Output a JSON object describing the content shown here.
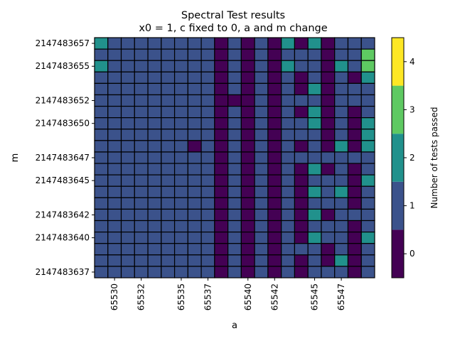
{
  "chart_data": {
    "type": "heatmap",
    "title": "Spectral Test results",
    "subtitle": "x0 = 1, c fixed to 0, a and m change",
    "xlabel": "a",
    "ylabel": "m",
    "colorbar_label": "Number of tests passed",
    "x_tick_labels": [
      "65530",
      "65532",
      "65535",
      "65537",
      "65540",
      "65542",
      "65545",
      "65547"
    ],
    "x_tick_values": [
      65530,
      65532,
      65535,
      65537,
      65540,
      65542,
      65545,
      65547
    ],
    "y_tick_labels": [
      "2147483657",
      "2147483655",
      "2147483652",
      "2147483650",
      "2147483647",
      "2147483645",
      "2147483642",
      "2147483640",
      "2147483637"
    ],
    "y_tick_values": [
      2147483657,
      2147483655,
      2147483652,
      2147483650,
      2147483647,
      2147483645,
      2147483642,
      2147483640,
      2147483637
    ],
    "x_range": [
      65529,
      65549
    ],
    "y_range": [
      2147483637,
      2147483657
    ],
    "colorbar_ticks": [
      "0",
      "1",
      "2",
      "3",
      "4"
    ],
    "colorbar_range": [
      -0.5,
      4.5
    ],
    "colors": [
      "#440154",
      "#3b528b",
      "#21918c",
      "#5ec962",
      "#fde725"
    ],
    "grid": false,
    "legend": "colorbar-right",
    "rows_top_to_bottom": [
      [
        2,
        1,
        1,
        1,
        1,
        1,
        1,
        1,
        1,
        0,
        1,
        0,
        1,
        0,
        2,
        0,
        2,
        0,
        1,
        1,
        1
      ],
      [
        1,
        1,
        1,
        1,
        1,
        1,
        1,
        1,
        1,
        0,
        1,
        0,
        1,
        0,
        1,
        1,
        1,
        0,
        1,
        1,
        3
      ],
      [
        2,
        1,
        1,
        1,
        1,
        1,
        1,
        1,
        1,
        0,
        1,
        0,
        1,
        0,
        2,
        1,
        1,
        0,
        2,
        1,
        3
      ],
      [
        1,
        1,
        1,
        1,
        1,
        1,
        1,
        1,
        1,
        0,
        1,
        0,
        1,
        0,
        1,
        0,
        1,
        0,
        1,
        0,
        2
      ],
      [
        1,
        1,
        1,
        1,
        1,
        1,
        1,
        1,
        1,
        0,
        1,
        0,
        1,
        0,
        1,
        0,
        2,
        0,
        1,
        1,
        1
      ],
      [
        1,
        1,
        1,
        1,
        1,
        1,
        1,
        1,
        1,
        0,
        0,
        0,
        1,
        0,
        1,
        1,
        1,
        0,
        1,
        1,
        1
      ],
      [
        1,
        1,
        1,
        1,
        1,
        1,
        1,
        1,
        1,
        0,
        1,
        0,
        1,
        0,
        1,
        0,
        2,
        0,
        1,
        0,
        1
      ],
      [
        1,
        1,
        1,
        1,
        1,
        1,
        1,
        1,
        1,
        0,
        1,
        0,
        1,
        0,
        1,
        1,
        2,
        0,
        1,
        0,
        2
      ],
      [
        1,
        1,
        1,
        1,
        1,
        1,
        1,
        1,
        1,
        0,
        1,
        0,
        1,
        0,
        1,
        1,
        1,
        0,
        1,
        0,
        2
      ],
      [
        1,
        1,
        1,
        1,
        1,
        1,
        1,
        0,
        1,
        0,
        1,
        0,
        1,
        0,
        1,
        0,
        1,
        0,
        2,
        0,
        2
      ],
      [
        1,
        1,
        1,
        1,
        1,
        1,
        1,
        1,
        1,
        0,
        1,
        0,
        1,
        0,
        1,
        1,
        1,
        1,
        1,
        1,
        1
      ],
      [
        1,
        1,
        1,
        1,
        1,
        1,
        1,
        1,
        1,
        0,
        1,
        0,
        1,
        0,
        1,
        0,
        2,
        0,
        1,
        0,
        1
      ],
      [
        1,
        1,
        1,
        1,
        1,
        1,
        1,
        1,
        1,
        0,
        1,
        0,
        1,
        0,
        1,
        0,
        1,
        1,
        1,
        0,
        2
      ],
      [
        1,
        1,
        1,
        1,
        1,
        1,
        1,
        1,
        1,
        0,
        1,
        0,
        1,
        0,
        1,
        0,
        2,
        1,
        2,
        0,
        1
      ],
      [
        1,
        1,
        1,
        1,
        1,
        1,
        1,
        1,
        1,
        0,
        1,
        0,
        1,
        0,
        1,
        0,
        1,
        1,
        1,
        0,
        1
      ],
      [
        1,
        1,
        1,
        1,
        1,
        1,
        1,
        1,
        1,
        0,
        1,
        0,
        1,
        0,
        1,
        0,
        2,
        0,
        1,
        1,
        1
      ],
      [
        1,
        1,
        1,
        1,
        1,
        1,
        1,
        1,
        1,
        0,
        1,
        0,
        1,
        0,
        1,
        0,
        1,
        1,
        1,
        0,
        1
      ],
      [
        1,
        1,
        1,
        1,
        1,
        1,
        1,
        1,
        1,
        0,
        1,
        0,
        1,
        0,
        1,
        0,
        2,
        1,
        1,
        0,
        2
      ],
      [
        1,
        1,
        1,
        1,
        1,
        1,
        1,
        1,
        1,
        0,
        1,
        0,
        1,
        0,
        1,
        1,
        1,
        0,
        1,
        0,
        1
      ],
      [
        1,
        1,
        1,
        1,
        1,
        1,
        1,
        1,
        1,
        0,
        1,
        0,
        1,
        0,
        1,
        0,
        1,
        0,
        2,
        0,
        1
      ],
      [
        1,
        1,
        1,
        1,
        1,
        1,
        1,
        1,
        1,
        0,
        1,
        0,
        1,
        0,
        1,
        0,
        1,
        1,
        1,
        0,
        1
      ]
    ]
  }
}
